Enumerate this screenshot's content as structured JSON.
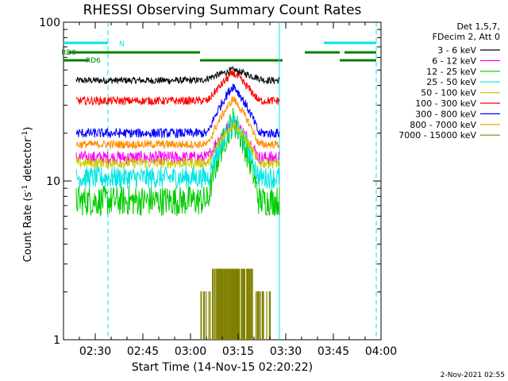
{
  "chart_data": {
    "type": "line",
    "title": "RHESSI Observing Summary Count Rates",
    "xlabel": "Start Time (14-Nov-15 02:20:22)",
    "ylabel_main": "Count Rate (s",
    "ylabel_sup1": "-1",
    "ylabel_mid": " detector",
    "ylabel_sup2": "-1",
    "ylabel_end": ")",
    "y_scale": "log",
    "ylim": [
      1,
      100
    ],
    "xlim_min": [
      140,
      240
    ],
    "x_ticks": [
      {
        "min": 150,
        "label": "02:30"
      },
      {
        "min": 165,
        "label": "02:45"
      },
      {
        "min": 180,
        "label": "03:00"
      },
      {
        "min": 195,
        "label": "03:15"
      },
      {
        "min": 210,
        "label": "03:30"
      },
      {
        "min": 225,
        "label": "03:45"
      },
      {
        "min": 240,
        "label": "04:00"
      }
    ],
    "y_ticks": [
      {
        "value": 1,
        "label": "1"
      },
      {
        "value": 10,
        "label": "10"
      },
      {
        "value": 100,
        "label": "100"
      }
    ],
    "legend_position": "right",
    "legend_header": [
      "Det 1,5,7,",
      "FDecim 2, Att 0"
    ],
    "data_start_min": 144.0,
    "data_end_min": 208.0,
    "flag_bars": [
      {
        "label": "N",
        "color": "#00e5e5",
        "y_frac": 0.065,
        "segments": [
          [
            140,
            154
          ],
          [
            222,
            238.5
          ]
        ]
      },
      {
        "label": "RD0",
        "color": "#008000",
        "y_frac": 0.095,
        "segments": [
          [
            141.5,
            183
          ],
          [
            216,
            227
          ],
          [
            228.5,
            238.5
          ]
        ]
      },
      {
        "label": "RD6",
        "color": "#008000",
        "y_frac": 0.12,
        "segments": [
          [
            140,
            148
          ],
          [
            183,
            209
          ],
          [
            227,
            238.5
          ]
        ]
      }
    ],
    "vertical_markers": [
      {
        "min": 154,
        "color": "#00e5e5",
        "style": "dashed"
      },
      {
        "min": 208,
        "color": "#00e5e5",
        "style": "solid"
      },
      {
        "min": 238.5,
        "color": "#00e5e5",
        "style": "dashed"
      }
    ],
    "peak_min": 193.5,
    "series": [
      {
        "name": "3 - 6 keV",
        "color": "#000000",
        "base": 43,
        "peak": 50,
        "width": 10,
        "noise": 0.05
      },
      {
        "name": "6 - 12 keV",
        "color": "#ff00ff",
        "base": 14,
        "peak": 24,
        "width": 8,
        "noise": 0.1
      },
      {
        "name": "12 - 25 keV",
        "color": "#00cc00",
        "base": 7.5,
        "peak": 24,
        "width": 8,
        "noise": 0.22
      },
      {
        "name": "25 - 50 keV",
        "color": "#00e5e5",
        "base": 10.5,
        "peak": 23,
        "width": 8,
        "noise": 0.16
      },
      {
        "name": "50 - 100 keV",
        "color": "#cccc00",
        "base": 13,
        "peak": 23,
        "width": 8,
        "noise": 0.08
      },
      {
        "name": "100 - 300 keV",
        "color": "#ff0000",
        "base": 32,
        "peak": 48,
        "width": 8,
        "noise": 0.06
      },
      {
        "name": "300 - 800 keV",
        "color": "#0000ff",
        "base": 20,
        "peak": 40,
        "width": 8,
        "noise": 0.07
      },
      {
        "name": "800 - 7000 keV",
        "color": "#ff8c00",
        "base": 17,
        "peak": 33,
        "width": 8,
        "noise": 0.06
      },
      {
        "name": "7000 - 15000 keV",
        "color": "#808000",
        "base": 0,
        "peak": 2.8,
        "width": 6,
        "noise": 0.2
      }
    ]
  },
  "footer": {
    "timestamp": "2-Nov-2021 02:55"
  }
}
